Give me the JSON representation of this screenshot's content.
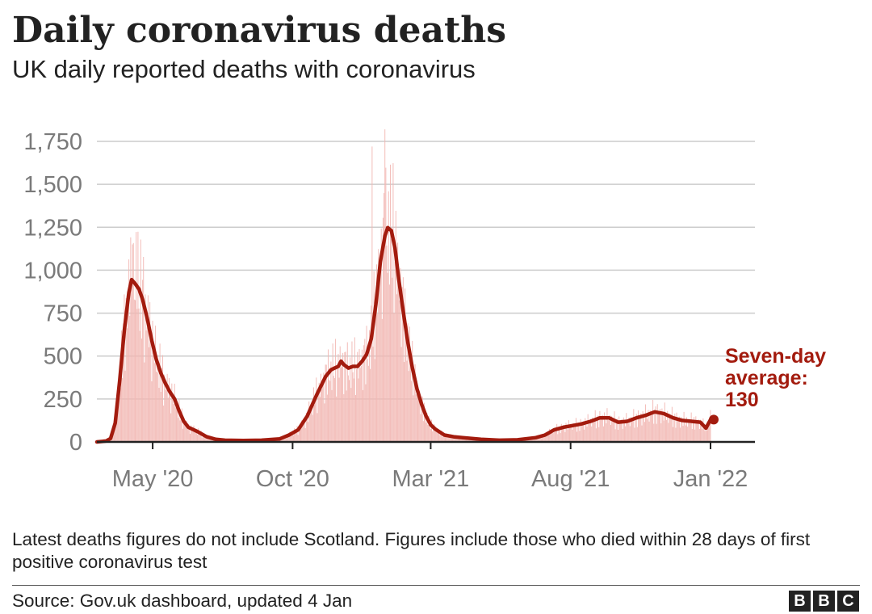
{
  "chart_data": {
    "type": "bar+line",
    "title": "Daily coronavirus deaths",
    "subtitle": "UK daily reported deaths with coronavirus",
    "ylim": [
      0,
      1750
    ],
    "y_ticks": [
      {
        "value": 0,
        "label": "0"
      },
      {
        "value": 250,
        "label": "250"
      },
      {
        "value": 500,
        "label": "500"
      },
      {
        "value": 750,
        "label": "750"
      },
      {
        "value": 1000,
        "label": "1,000"
      },
      {
        "value": 1250,
        "label": "1,250"
      },
      {
        "value": 1500,
        "label": "1,500"
      },
      {
        "value": 1750,
        "label": "1,750"
      }
    ],
    "x_range_days": [
      0,
      671
    ],
    "x_ticks": [
      {
        "day": 61,
        "label": "May '20"
      },
      {
        "day": 214,
        "label": "Oct '20"
      },
      {
        "day": 365,
        "label": "Mar '21"
      },
      {
        "day": 518,
        "label": "Aug '21"
      },
      {
        "day": 671,
        "label": "Jan '22"
      }
    ],
    "x_start": "2020-03-01",
    "series": [
      {
        "name": "Daily deaths",
        "kind": "bar",
        "color": "#f2b7b3",
        "peaks": [
          {
            "day": 39,
            "value": 1150
          },
          {
            "day": 45,
            "value": 1224
          },
          {
            "day": 301,
            "value": 1720
          },
          {
            "day": 315,
            "value": 1820
          }
        ]
      },
      {
        "name": "Seven-day average",
        "kind": "line",
        "color": "#a31b0e",
        "points": [
          [
            0,
            0
          ],
          [
            10,
            5
          ],
          [
            15,
            20
          ],
          [
            20,
            110
          ],
          [
            25,
            360
          ],
          [
            30,
            650
          ],
          [
            35,
            870
          ],
          [
            38,
            945
          ],
          [
            42,
            920
          ],
          [
            46,
            890
          ],
          [
            50,
            830
          ],
          [
            55,
            720
          ],
          [
            60,
            590
          ],
          [
            65,
            480
          ],
          [
            70,
            400
          ],
          [
            75,
            340
          ],
          [
            80,
            290
          ],
          [
            85,
            250
          ],
          [
            90,
            180
          ],
          [
            95,
            120
          ],
          [
            100,
            85
          ],
          [
            110,
            60
          ],
          [
            120,
            30
          ],
          [
            130,
            15
          ],
          [
            140,
            10
          ],
          [
            160,
            8
          ],
          [
            180,
            10
          ],
          [
            200,
            18
          ],
          [
            210,
            40
          ],
          [
            220,
            70
          ],
          [
            230,
            150
          ],
          [
            240,
            270
          ],
          [
            250,
            380
          ],
          [
            256,
            420
          ],
          [
            260,
            430
          ],
          [
            264,
            440
          ],
          [
            267,
            470
          ],
          [
            270,
            450
          ],
          [
            275,
            430
          ],
          [
            280,
            440
          ],
          [
            285,
            440
          ],
          [
            290,
            470
          ],
          [
            295,
            510
          ],
          [
            300,
            600
          ],
          [
            305,
            800
          ],
          [
            310,
            1050
          ],
          [
            315,
            1200
          ],
          [
            318,
            1248
          ],
          [
            322,
            1230
          ],
          [
            326,
            1130
          ],
          [
            330,
            950
          ],
          [
            335,
            760
          ],
          [
            340,
            580
          ],
          [
            345,
            430
          ],
          [
            350,
            310
          ],
          [
            355,
            220
          ],
          [
            360,
            150
          ],
          [
            365,
            100
          ],
          [
            370,
            75
          ],
          [
            380,
            40
          ],
          [
            390,
            30
          ],
          [
            400,
            25
          ],
          [
            420,
            15
          ],
          [
            440,
            10
          ],
          [
            460,
            12
          ],
          [
            480,
            25
          ],
          [
            490,
            40
          ],
          [
            500,
            70
          ],
          [
            510,
            85
          ],
          [
            520,
            95
          ],
          [
            530,
            105
          ],
          [
            540,
            120
          ],
          [
            550,
            140
          ],
          [
            560,
            140
          ],
          [
            570,
            115
          ],
          [
            580,
            120
          ],
          [
            590,
            140
          ],
          [
            600,
            155
          ],
          [
            610,
            175
          ],
          [
            620,
            165
          ],
          [
            630,
            140
          ],
          [
            640,
            125
          ],
          [
            650,
            120
          ],
          [
            660,
            115
          ],
          [
            666,
            80
          ],
          [
            671,
            130
          ]
        ]
      }
    ],
    "annotation": {
      "lines": [
        "Seven-day",
        "average:",
        "130"
      ],
      "value": 130,
      "day": 671
    },
    "note": "Latest deaths figures do not include Scotland. Figures include those who died within 28 days of first positive coronavirus test",
    "source": "Source: Gov.uk dashboard, updated 4 Jan",
    "logo": [
      "B",
      "B",
      "C"
    ],
    "colors": {
      "bars": "#f2b7b3",
      "line": "#a31b0e",
      "grid": "#cccccc",
      "axis": "#222222"
    }
  }
}
